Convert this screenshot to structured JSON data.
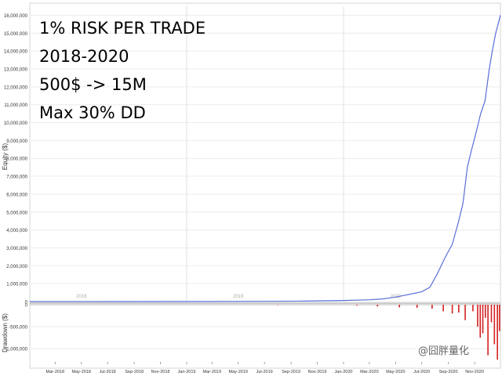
{
  "annotations": [
    "1% RISK PER TRADE",
    "2018-2020",
    "500$ -> 15M",
    "Max 30% DD"
  ],
  "watermark": "@囧胖量化",
  "chart_data": [
    {
      "type": "line",
      "ylabel": "Equity ($)",
      "ylim": [
        0,
        16500000
      ],
      "y_ticks": [
        0,
        1000000,
        2000000,
        3000000,
        4000000,
        5000000,
        6000000,
        7000000,
        8000000,
        9000000,
        10000000,
        11000000,
        12000000,
        13000000,
        14000000,
        15000000,
        16000000
      ],
      "y_tick_labels": [
        "0",
        "1,000,000",
        "2,000,000",
        "3,000,000",
        "4,000,000",
        "5,000,000",
        "6,000,000",
        "7,000,000",
        "8,000,000",
        "9,000,000",
        "10,000,000",
        "11,000,000",
        "12,000,000",
        "13,000,000",
        "14,000,000",
        "15,000,000",
        "16,000,000"
      ],
      "year_labels": [
        {
          "x": "2018-05-01",
          "label": "2018"
        },
        {
          "x": "2019-05-01",
          "label": "2019"
        },
        {
          "x": "2020-05-01",
          "label": "2020"
        }
      ],
      "grid": true,
      "series": [
        {
          "color": "#5a6fd8",
          "points": [
            [
              "2018-01-01",
              500
            ],
            [
              "2018-06-01",
              1500
            ],
            [
              "2019-01-01",
              5000
            ],
            [
              "2019-06-01",
              12000
            ],
            [
              "2019-10-01",
              25000
            ],
            [
              "2020-01-01",
              60000
            ],
            [
              "2020-03-01",
              100000
            ],
            [
              "2020-04-01",
              150000
            ],
            [
              "2020-05-01",
              250000
            ],
            [
              "2020-06-01",
              400000
            ],
            [
              "2020-07-01",
              550000
            ],
            [
              "2020-07-20",
              800000
            ],
            [
              "2020-08-05",
              1500000
            ],
            [
              "2020-08-25",
              2500000
            ],
            [
              "2020-09-10",
              3200000
            ],
            [
              "2020-09-25",
              4500000
            ],
            [
              "2020-10-05",
              5500000
            ],
            [
              "2020-10-15",
              7500000
            ],
            [
              "2020-10-25",
              8500000
            ],
            [
              "2020-11-05",
              9500000
            ],
            [
              "2020-11-15",
              10500000
            ],
            [
              "2020-11-25",
              11200000
            ],
            [
              "2020-12-05",
              13000000
            ],
            [
              "2020-12-12",
              14000000
            ],
            [
              "2020-12-20",
              15000000
            ],
            [
              "2020-12-31",
              16000000
            ]
          ]
        }
      ]
    },
    {
      "type": "bar",
      "ylabel": "Drawdown ($)",
      "ylim": [
        -1300000,
        0
      ],
      "y_ticks": [
        0,
        -500000,
        -1000000
      ],
      "y_tick_labels": [
        "0",
        "-500,000",
        "-1,000,000"
      ],
      "x_tick_labels": [
        "Mar-2018",
        "May-2018",
        "Jul-2018",
        "Sep-2018",
        "Nov-2018",
        "Jan-2019",
        "Mar-2019",
        "May-2019",
        "Jul-2019",
        "Sep-2019",
        "Nov-2019",
        "Jan-2020",
        "Mar-2020",
        "May-2020",
        "Jul-2020",
        "Sep-2020",
        "Nov-2020"
      ],
      "x_ticks": [
        "2018-03-01",
        "2018-05-01",
        "2018-07-01",
        "2018-09-01",
        "2018-11-01",
        "2019-01-01",
        "2019-03-01",
        "2019-05-01",
        "2019-07-01",
        "2019-09-01",
        "2019-11-01",
        "2020-01-01",
        "2020-03-01",
        "2020-05-01",
        "2020-07-01",
        "2020-09-01",
        "2020-11-01"
      ],
      "series": [
        {
          "color": "#d42020",
          "points": [
            [
              "2019-02-01",
              -5000
            ],
            [
              "2019-08-01",
              -8000
            ],
            [
              "2020-02-01",
              -20000
            ],
            [
              "2020-03-20",
              -40000
            ],
            [
              "2020-05-10",
              -60000
            ],
            [
              "2020-06-20",
              -70000
            ],
            [
              "2020-07-25",
              -90000
            ],
            [
              "2020-08-20",
              -150000
            ],
            [
              "2020-09-10",
              -200000
            ],
            [
              "2020-09-25",
              -180000
            ],
            [
              "2020-10-10",
              -350000
            ],
            [
              "2020-10-28",
              -150000
            ],
            [
              "2020-11-08",
              -500000
            ],
            [
              "2020-11-14",
              -750000
            ],
            [
              "2020-11-20",
              -650000
            ],
            [
              "2020-11-26",
              -300000
            ],
            [
              "2020-12-02",
              -1150000
            ],
            [
              "2020-12-10",
              -400000
            ],
            [
              "2020-12-17",
              -900000
            ],
            [
              "2020-12-24",
              -1250000
            ],
            [
              "2020-12-29",
              -600000
            ]
          ]
        }
      ]
    }
  ]
}
